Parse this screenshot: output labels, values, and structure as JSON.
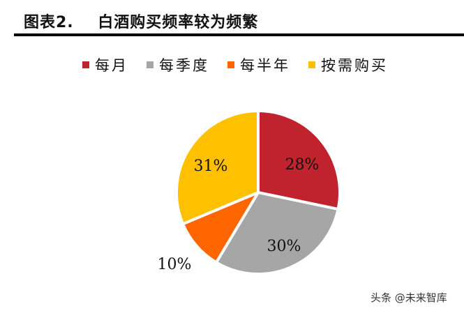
{
  "header": {
    "title": "图表2.    白酒购买频率较为频繁"
  },
  "chart_data": {
    "type": "pie",
    "title": "白酒购买频率较为频繁",
    "figure_label": "图表2.",
    "categories": [
      "每月",
      "每季度",
      "每半年",
      "按需购买"
    ],
    "values": [
      28,
      30,
      10,
      31
    ],
    "value_labels": [
      "28%",
      "30%",
      "10%",
      "31%"
    ],
    "colors": [
      "#C0232E",
      "#A6A6A6",
      "#FF6600",
      "#FFC000"
    ],
    "start_angle": "12 o'clock",
    "direction": "clockwise",
    "legend_position": "top"
  },
  "legend": {
    "items": [
      {
        "label": "每月",
        "color": "#C0232E"
      },
      {
        "label": "每季度",
        "color": "#A6A6A6"
      },
      {
        "label": "每半年",
        "color": "#FF6600"
      },
      {
        "label": "按需购买",
        "color": "#FFC000"
      }
    ]
  },
  "watermark": "头条 @未来智库"
}
